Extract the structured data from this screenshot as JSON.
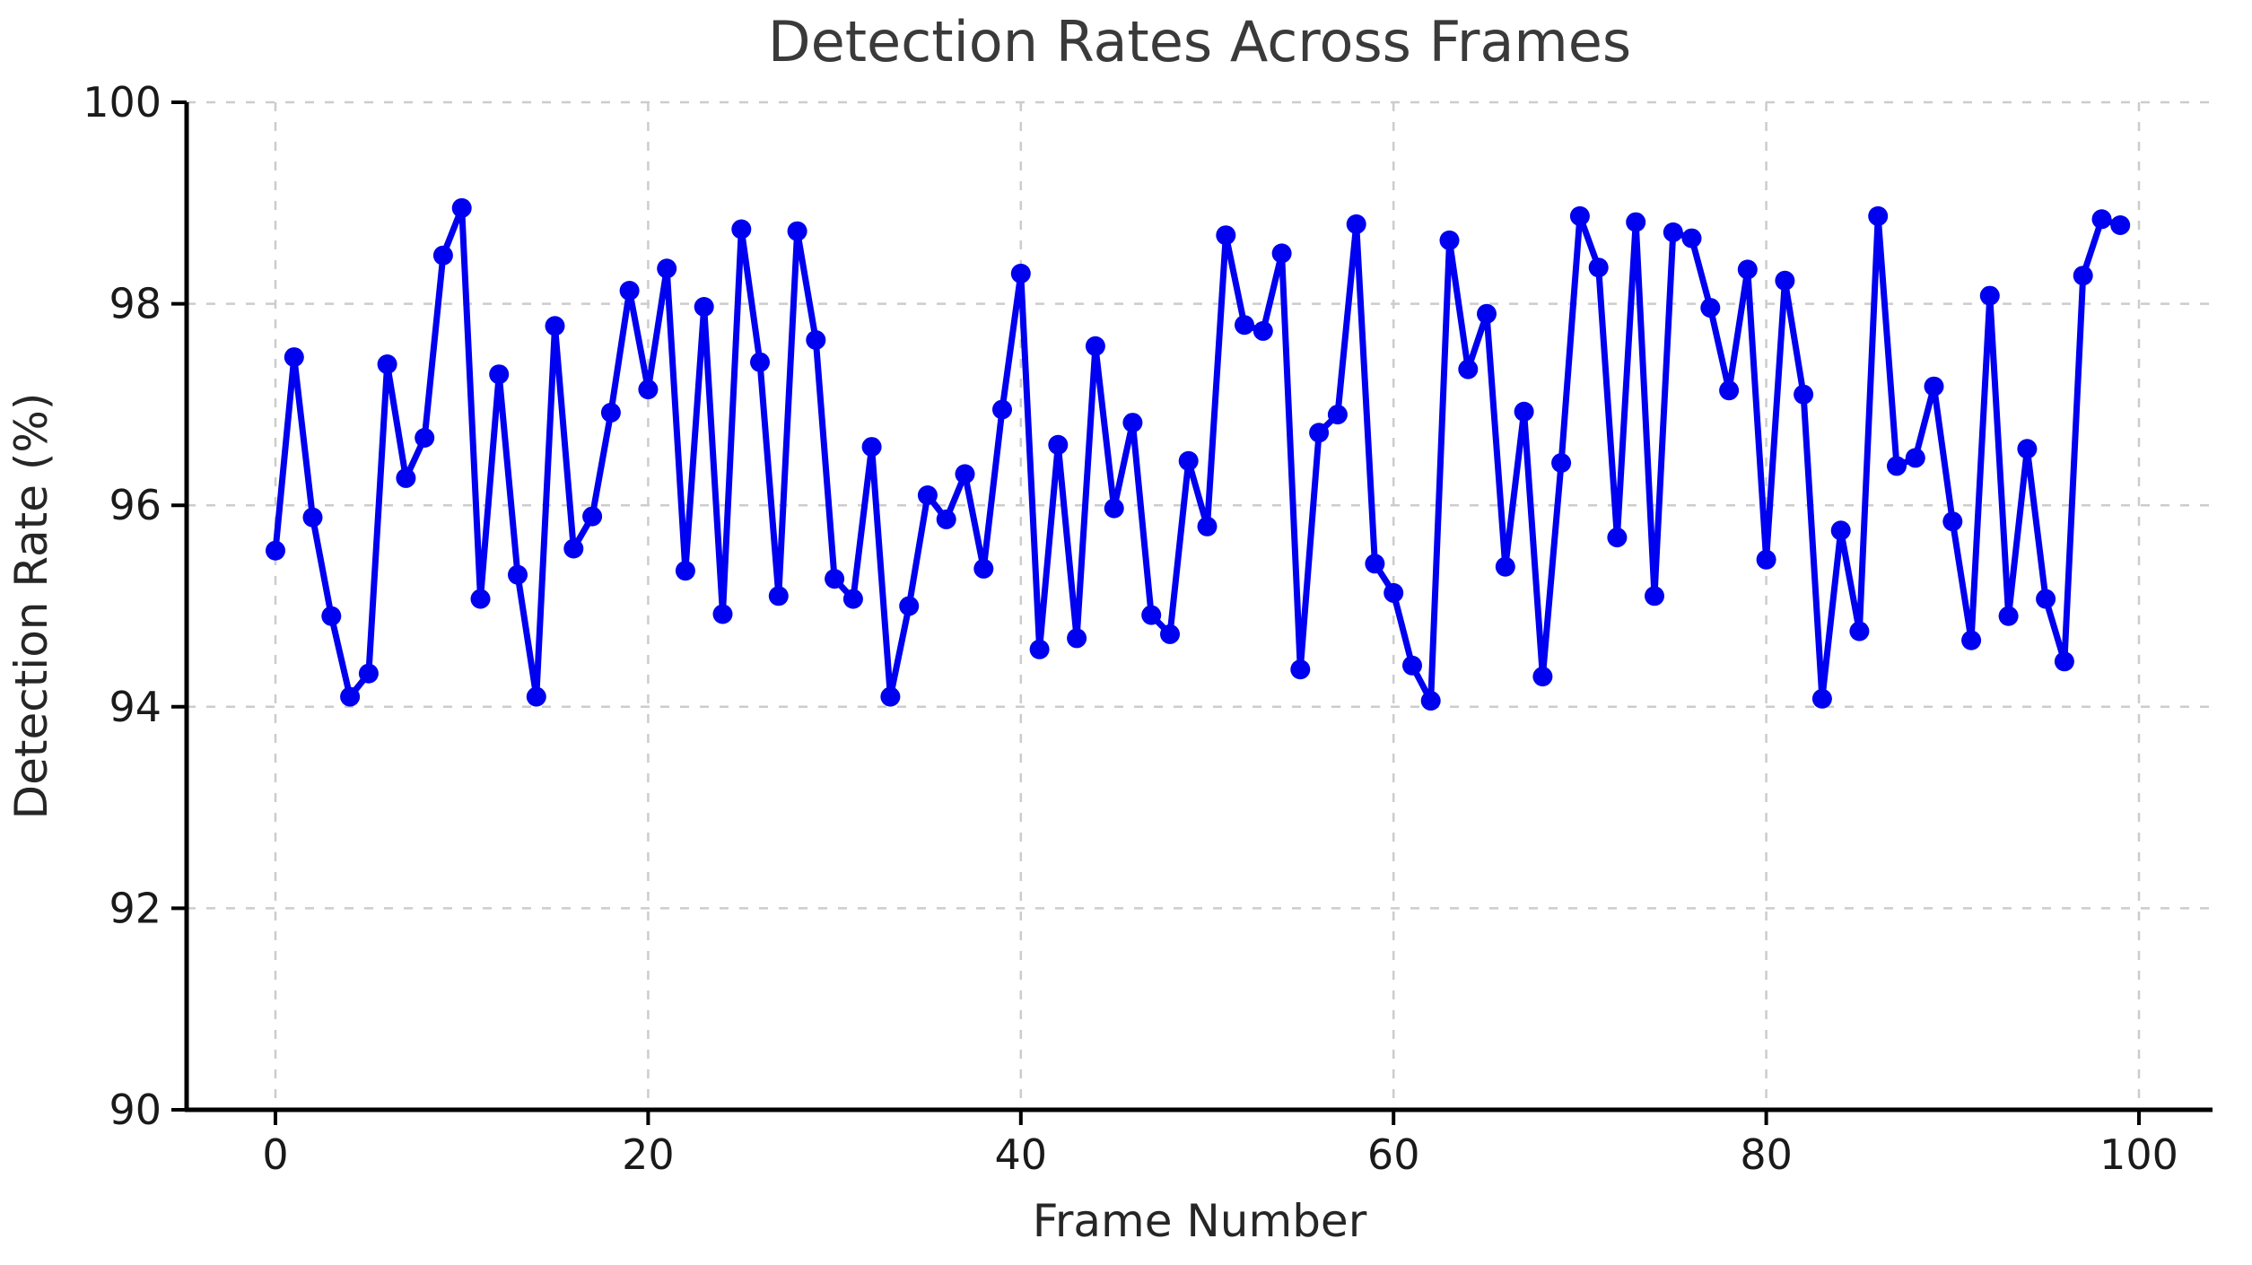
{
  "title": "Detection Rates Across Frames",
  "chart_data": {
    "type": "line",
    "title": "Detection Rates Across Frames",
    "xlabel": "Frame Number",
    "ylabel": "Detection Rate (%)",
    "x_start": 0,
    "x_step": 1,
    "n_points": 100,
    "xlim": [
      -4.8,
      103.9
    ],
    "ylim": [
      90,
      100
    ],
    "x_ticks": [
      0,
      20,
      40,
      60,
      80,
      100
    ],
    "y_ticks": [
      90,
      92,
      94,
      96,
      98,
      100
    ],
    "grid": "dashed-both-axes",
    "legend": "none",
    "line_color": "#0000f0",
    "marker": "circle",
    "values": [
      95.55,
      97.47,
      95.88,
      94.9,
      94.1,
      94.33,
      97.4,
      96.27,
      96.67,
      98.48,
      98.95,
      95.07,
      97.3,
      95.31,
      94.1,
      97.78,
      95.57,
      95.89,
      96.92,
      98.13,
      97.15,
      98.35,
      95.35,
      97.97,
      94.92,
      98.74,
      97.42,
      95.1,
      98.72,
      97.64,
      95.27,
      95.07,
      96.58,
      94.1,
      95.0,
      96.1,
      95.86,
      96.31,
      95.37,
      96.95,
      98.3,
      94.57,
      96.6,
      94.68,
      97.58,
      95.97,
      96.82,
      94.91,
      94.72,
      96.44,
      95.79,
      98.68,
      97.79,
      97.73,
      98.5,
      94.37,
      96.72,
      96.9,
      98.79,
      95.42,
      95.13,
      94.41,
      94.06,
      98.63,
      97.35,
      97.9,
      95.39,
      96.93,
      94.3,
      96.42,
      98.87,
      98.36,
      95.68,
      98.81,
      95.1,
      98.71,
      98.65,
      97.96,
      97.14,
      98.34,
      95.46,
      98.23,
      97.1,
      94.08,
      95.75,
      94.75,
      98.87,
      96.39,
      96.47,
      97.18,
      95.84,
      94.66,
      98.08,
      94.9,
      96.56,
      95.07,
      94.45,
      98.28,
      98.84,
      98.78
    ]
  },
  "colors": {
    "line": "#0000f0",
    "grid": "#cccccc",
    "spine": "#000000",
    "title_text": "#3a3a3a",
    "label_text": "#262626",
    "background": "#ffffff"
  }
}
